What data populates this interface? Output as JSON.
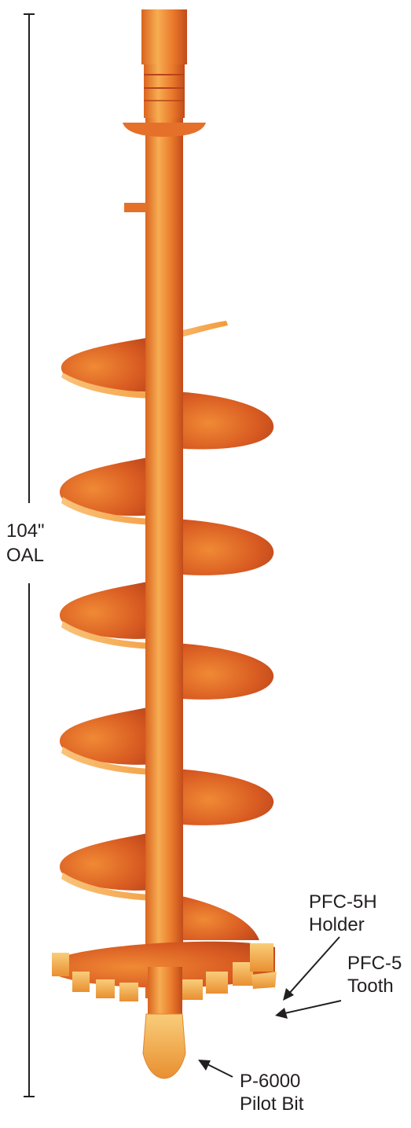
{
  "dimension": {
    "value_line1": "104\"",
    "value_line2": "OAL"
  },
  "callouts": {
    "holder": {
      "line1": "PFC-5H",
      "line2": "Holder"
    },
    "tooth": {
      "line1": "PFC-5",
      "line2": "Tooth"
    },
    "pilot": {
      "line1": "P-6000",
      "line2": "Pilot Bit"
    }
  },
  "colors": {
    "auger_light": "#f39a3c",
    "auger_mid": "#e8742a",
    "auger_dark": "#c2491b",
    "teeth": "#f6b24a",
    "ink": "#231f20"
  }
}
